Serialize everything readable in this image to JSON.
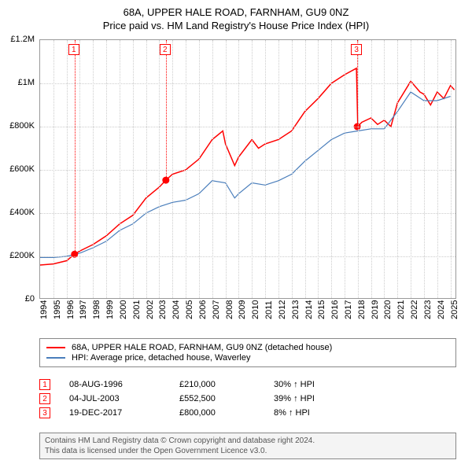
{
  "title": {
    "main": "68A, UPPER HALE ROAD, FARNHAM, GU9 0NZ",
    "sub": "Price paid vs. HM Land Registry's House Price Index (HPI)"
  },
  "chart": {
    "type": "line",
    "background_color": "#ffffff",
    "grid_color": "#cccccc",
    "border_color": "#999999",
    "ylim": [
      0,
      1200000
    ],
    "ytick_step": 200000,
    "yticks": [
      {
        "v": 0,
        "label": "£0"
      },
      {
        "v": 200000,
        "label": "£200K"
      },
      {
        "v": 400000,
        "label": "£400K"
      },
      {
        "v": 600000,
        "label": "£600K"
      },
      {
        "v": 800000,
        "label": "£800K"
      },
      {
        "v": 1000000,
        "label": "£1M"
      },
      {
        "v": 1200000,
        "label": "£1.2M"
      }
    ],
    "xlim": [
      1994,
      2025.5
    ],
    "xticks": [
      1994,
      1995,
      1996,
      1997,
      1998,
      1999,
      2000,
      2001,
      2002,
      2003,
      2004,
      2005,
      2006,
      2007,
      2008,
      2009,
      2010,
      2011,
      2012,
      2013,
      2014,
      2015,
      2016,
      2017,
      2018,
      2019,
      2020,
      2021,
      2022,
      2023,
      2024,
      2025
    ],
    "series": [
      {
        "name": "68A, UPPER HALE ROAD, FARNHAM, GU9 0NZ (detached house)",
        "color": "#ff0000",
        "line_width": 1.5,
        "data": [
          [
            1994,
            160000
          ],
          [
            1995,
            165000
          ],
          [
            1996,
            180000
          ],
          [
            1996.6,
            210000
          ],
          [
            1997,
            225000
          ],
          [
            1998,
            255000
          ],
          [
            1999,
            295000
          ],
          [
            2000,
            350000
          ],
          [
            2001,
            390000
          ],
          [
            2002,
            470000
          ],
          [
            2003,
            520000
          ],
          [
            2003.5,
            552500
          ],
          [
            2004,
            580000
          ],
          [
            2005,
            600000
          ],
          [
            2006,
            650000
          ],
          [
            2007,
            740000
          ],
          [
            2007.8,
            780000
          ],
          [
            2008,
            720000
          ],
          [
            2008.7,
            620000
          ],
          [
            2009,
            660000
          ],
          [
            2010,
            740000
          ],
          [
            2010.5,
            700000
          ],
          [
            2011,
            720000
          ],
          [
            2012,
            740000
          ],
          [
            2013,
            780000
          ],
          [
            2014,
            870000
          ],
          [
            2015,
            930000
          ],
          [
            2016,
            1000000
          ],
          [
            2017,
            1040000
          ],
          [
            2017.9,
            1070000
          ],
          [
            2018,
            800000
          ],
          [
            2018.3,
            820000
          ],
          [
            2019,
            840000
          ],
          [
            2019.5,
            810000
          ],
          [
            2020,
            830000
          ],
          [
            2020.5,
            800000
          ],
          [
            2021,
            910000
          ],
          [
            2022,
            1010000
          ],
          [
            2022.7,
            960000
          ],
          [
            2023,
            950000
          ],
          [
            2023.5,
            900000
          ],
          [
            2024,
            960000
          ],
          [
            2024.5,
            930000
          ],
          [
            2025,
            990000
          ],
          [
            2025.3,
            970000
          ]
        ]
      },
      {
        "name": "HPI: Average price, detached house, Waverley",
        "color": "#4a7ebb",
        "line_width": 1.2,
        "data": [
          [
            1994,
            195000
          ],
          [
            1995,
            195000
          ],
          [
            1996,
            200000
          ],
          [
            1997,
            215000
          ],
          [
            1998,
            240000
          ],
          [
            1999,
            270000
          ],
          [
            2000,
            320000
          ],
          [
            2001,
            350000
          ],
          [
            2002,
            400000
          ],
          [
            2003,
            430000
          ],
          [
            2004,
            450000
          ],
          [
            2005,
            460000
          ],
          [
            2006,
            490000
          ],
          [
            2007,
            550000
          ],
          [
            2008,
            540000
          ],
          [
            2008.7,
            470000
          ],
          [
            2009,
            490000
          ],
          [
            2010,
            540000
          ],
          [
            2011,
            530000
          ],
          [
            2012,
            550000
          ],
          [
            2013,
            580000
          ],
          [
            2014,
            640000
          ],
          [
            2015,
            690000
          ],
          [
            2016,
            740000
          ],
          [
            2017,
            770000
          ],
          [
            2018,
            780000
          ],
          [
            2019,
            790000
          ],
          [
            2020,
            790000
          ],
          [
            2021,
            870000
          ],
          [
            2022,
            960000
          ],
          [
            2023,
            920000
          ],
          [
            2024,
            920000
          ],
          [
            2025,
            940000
          ]
        ]
      }
    ],
    "markers": [
      {
        "idx": "1",
        "x": 1996.6,
        "y": 210000
      },
      {
        "idx": "2",
        "x": 2003.5,
        "y": 552500
      },
      {
        "idx": "3",
        "x": 2017.96,
        "y": 800000
      }
    ],
    "marker_color": "#ff0000",
    "marker_radius": 4
  },
  "legend": {
    "items": [
      {
        "color": "#ff0000",
        "label": "68A, UPPER HALE ROAD, FARNHAM, GU9 0NZ (detached house)"
      },
      {
        "color": "#4a7ebb",
        "label": "HPI: Average price, detached house, Waverley"
      }
    ]
  },
  "sales": [
    {
      "idx": "1",
      "date": "08-AUG-1996",
      "price": "£210,000",
      "pct": "30% ↑ HPI"
    },
    {
      "idx": "2",
      "date": "04-JUL-2003",
      "price": "£552,500",
      "pct": "39% ↑ HPI"
    },
    {
      "idx": "3",
      "date": "19-DEC-2017",
      "price": "£800,000",
      "pct": "8% ↑ HPI"
    }
  ],
  "footer": {
    "line1": "Contains HM Land Registry data © Crown copyright and database right 2024.",
    "line2": "This data is licensed under the Open Government Licence v3.0."
  }
}
